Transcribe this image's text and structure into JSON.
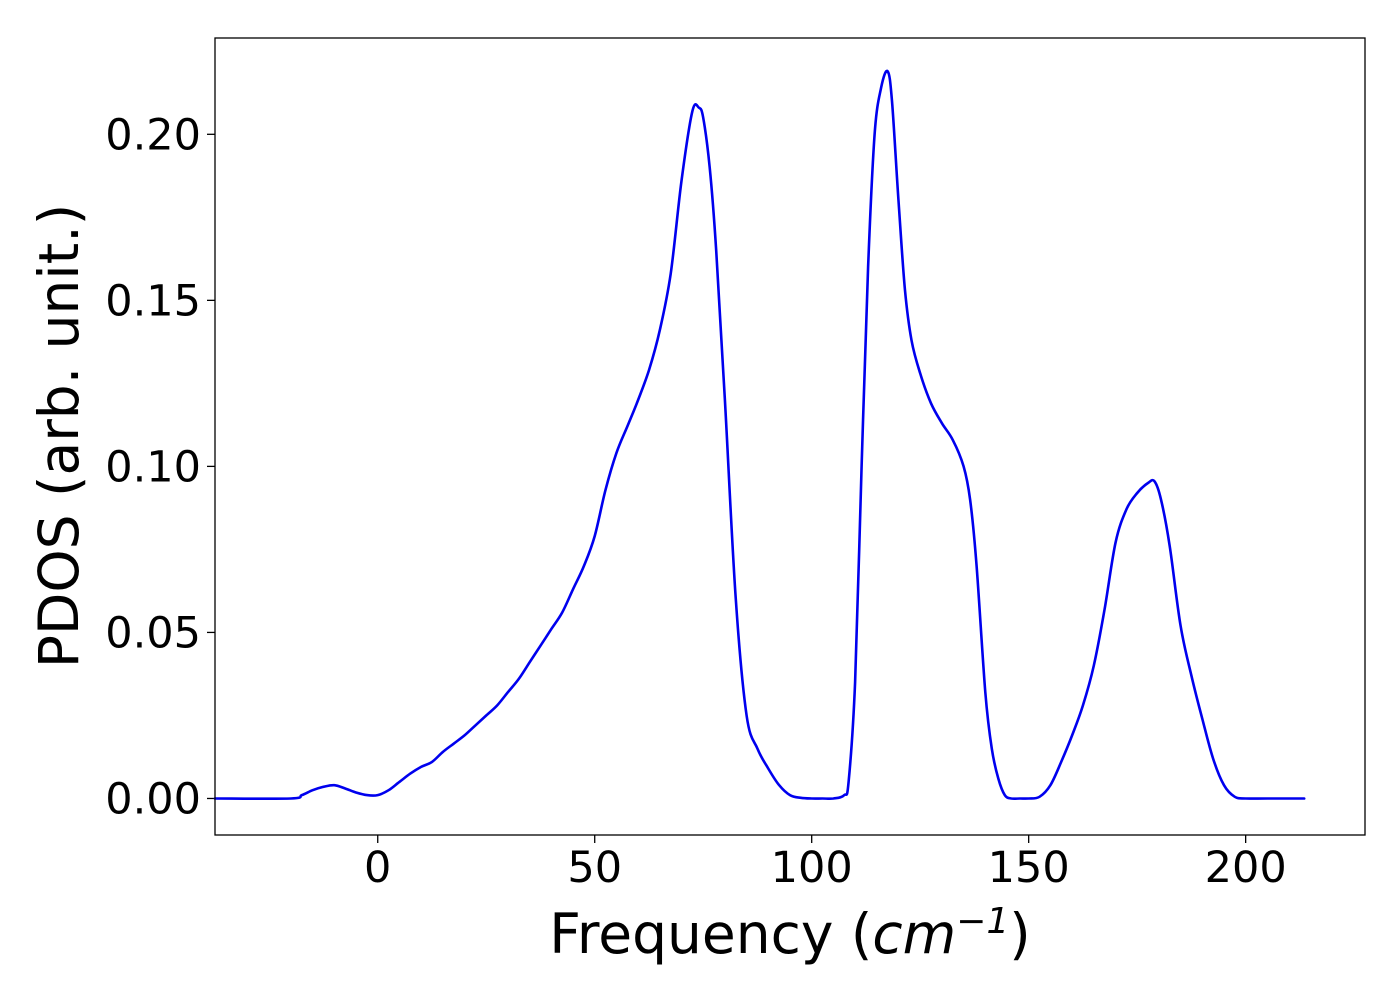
{
  "chart_data": {
    "type": "line",
    "title": "",
    "xlabel": {
      "text": "Frequency (",
      "unit_base": "cm",
      "unit_exp": "−1",
      "close": ")"
    },
    "ylabel": "PDOS (arb. unit.)",
    "xlim": [
      -37.5,
      227.5
    ],
    "ylim": [
      -0.011,
      0.229
    ],
    "x_ticks": [
      0,
      50,
      100,
      150,
      200
    ],
    "x_tick_labels": [
      "0",
      "50",
      "100",
      "150",
      "200"
    ],
    "y_ticks": [
      0.0,
      0.05,
      0.1,
      0.15,
      0.2
    ],
    "y_tick_labels": [
      "0.00",
      "0.05",
      "0.10",
      "0.15",
      "0.20"
    ],
    "grid": false,
    "legend": "none",
    "series": [
      {
        "color": "#0000ee",
        "x": [
          -37.5,
          -20,
          -17.5,
          -15,
          -12.5,
          -10,
          -7.5,
          -5,
          -2.5,
          0,
          2.5,
          5,
          7.5,
          10,
          12.5,
          15,
          17.5,
          20,
          22.5,
          25,
          27.5,
          30,
          32.5,
          35,
          37.5,
          40,
          42.5,
          45,
          47.5,
          50,
          52.5,
          55,
          57.5,
          60,
          62.5,
          65,
          67.5,
          70,
          72.5,
          74,
          75,
          76.5,
          78,
          80,
          82.5,
          85,
          87.5,
          90,
          92.5,
          95,
          97.5,
          100,
          102.5,
          105,
          107.5,
          108.5,
          110,
          111.5,
          113,
          114.5,
          116,
          117.5,
          118.5,
          120,
          121.5,
          123,
          125,
          127.5,
          130,
          132.5,
          135,
          136.5,
          138,
          140,
          141.5,
          143,
          144.5,
          146,
          148,
          150,
          152.5,
          155,
          157.5,
          160,
          162.5,
          165,
          167.5,
          170,
          172.5,
          175,
          177.5,
          179,
          180.5,
          182.5,
          185,
          187.5,
          190,
          192.5,
          195,
          197.5,
          200,
          205,
          213.5
        ],
        "y": [
          0.0,
          0.0,
          0.001,
          0.0025,
          0.0035,
          0.004,
          0.003,
          0.0018,
          0.001,
          0.001,
          0.0025,
          0.005,
          0.0075,
          0.0095,
          0.011,
          0.014,
          0.0165,
          0.019,
          0.022,
          0.025,
          0.028,
          0.032,
          0.036,
          0.041,
          0.046,
          0.051,
          0.056,
          0.063,
          0.07,
          0.079,
          0.093,
          0.104,
          0.112,
          0.12,
          0.129,
          0.141,
          0.158,
          0.186,
          0.207,
          0.208,
          0.205,
          0.19,
          0.165,
          0.12,
          0.06,
          0.025,
          0.015,
          0.009,
          0.004,
          0.001,
          0.0002,
          0.0,
          0.0,
          0.0,
          0.001,
          0.005,
          0.035,
          0.1,
          0.16,
          0.2,
          0.214,
          0.219,
          0.21,
          0.18,
          0.153,
          0.138,
          0.128,
          0.119,
          0.113,
          0.108,
          0.1,
          0.09,
          0.07,
          0.032,
          0.015,
          0.006,
          0.001,
          0.0,
          0.0,
          0.0,
          0.0005,
          0.004,
          0.011,
          0.019,
          0.028,
          0.04,
          0.057,
          0.077,
          0.087,
          0.092,
          0.095,
          0.0955,
          0.09,
          0.076,
          0.052,
          0.037,
          0.024,
          0.012,
          0.004,
          0.0005,
          0.0,
          0.0,
          0.0
        ]
      }
    ]
  }
}
